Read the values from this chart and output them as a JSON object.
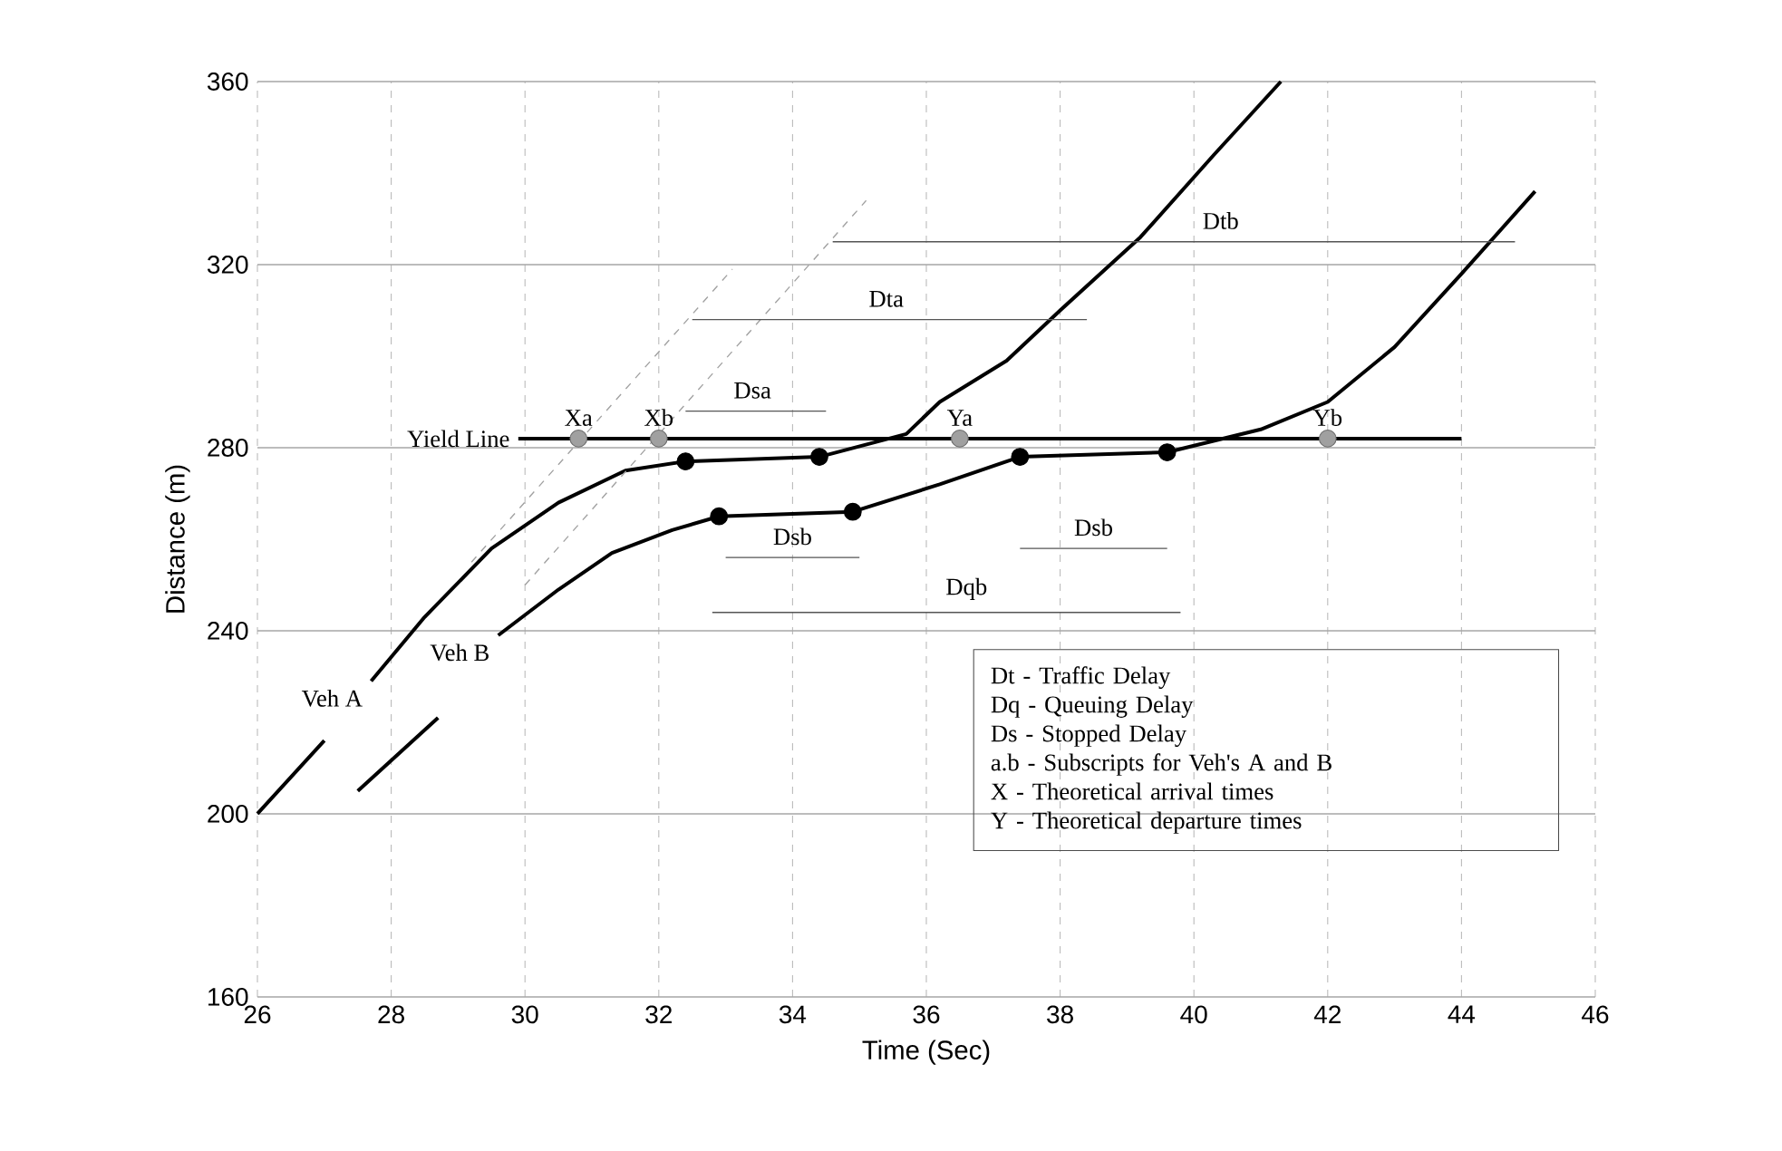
{
  "chart_data": {
    "type": "line",
    "xlabel": "Time (Sec)",
    "ylabel": "Distance (m)",
    "xlim": [
      26,
      46
    ],
    "ylim": [
      160,
      360
    ],
    "xticks": [
      26,
      28,
      30,
      32,
      34,
      36,
      38,
      40,
      42,
      44,
      46
    ],
    "yticks": [
      160,
      200,
      240,
      280,
      320,
      360
    ],
    "grid": true,
    "series": [
      {
        "name": "Veh A",
        "color": "#000000",
        "x": [
          26,
          27,
          27.35,
          27.7,
          28.5,
          29.5,
          30.5,
          31.5,
          32.4,
          34.4,
          35.7,
          36.2,
          37.2,
          38,
          39.2,
          40.3,
          41.3
        ],
        "values": [
          200,
          216,
          null,
          229,
          243,
          258,
          268,
          275,
          277,
          278,
          283,
          290,
          299,
          310,
          326,
          344,
          360
        ]
      },
      {
        "name": "Veh B",
        "color": "#000000",
        "x": [
          27.5,
          28.7,
          29.15,
          29.6,
          30.5,
          31.3,
          32.2,
          32.9,
          34.9,
          36.2,
          37.4,
          39.6,
          41,
          42,
          43,
          44,
          45.1
        ],
        "values": [
          205,
          221,
          null,
          239,
          249,
          257,
          262,
          265,
          266,
          272,
          278,
          279,
          284,
          290,
          302,
          318,
          336
        ]
      },
      {
        "name": "Yield Line",
        "color": "#000000",
        "x": [
          29.9,
          44
        ],
        "values": [
          282,
          282
        ]
      },
      {
        "color": "#a0a0a0",
        "line_style": "dashed",
        "x": [
          29.2,
          33.1
        ],
        "values": [
          255,
          319
        ]
      },
      {
        "color": "#a0a0a0",
        "line_style": "dashed",
        "x": [
          30,
          35.1
        ],
        "values": [
          250,
          334
        ]
      },
      {
        "type": "scatter",
        "color": "#a0a0a0",
        "x": [
          30.8,
          32,
          36.5,
          42
        ],
        "values": [
          282,
          282,
          282,
          282
        ]
      },
      {
        "type": "scatter",
        "color": "#000000",
        "x": [
          32.4,
          34.4,
          32.9,
          34.9,
          37.4,
          39.6
        ],
        "values": [
          277,
          278,
          265,
          266,
          278,
          279
        ]
      },
      {
        "color": "#555555",
        "x": [
          32.5,
          38.4
        ],
        "values": [
          308,
          308
        ]
      },
      {
        "color": "#555555",
        "x": [
          34.6,
          44.8
        ],
        "values": [
          325,
          325
        ]
      },
      {
        "color": "#555555",
        "x": [
          32.4,
          34.5
        ],
        "values": [
          288,
          288
        ]
      },
      {
        "color": "#555555",
        "x": [
          33,
          35
        ],
        "values": [
          256,
          256
        ]
      },
      {
        "color": "#555555",
        "x": [
          32.8,
          39.8
        ],
        "values": [
          244,
          244
        ]
      },
      {
        "color": "#555555",
        "x": [
          37.4,
          39.6
        ],
        "values": [
          258,
          258
        ]
      }
    ],
    "annotations": [
      {
        "text": "Xa",
        "x": 30.8,
        "y": 282
      },
      {
        "text": "Xb",
        "x": 32,
        "y": 282
      },
      {
        "text": "Ya",
        "x": 36.5,
        "y": 282
      },
      {
        "text": "Yb",
        "x": 42,
        "y": 282
      },
      {
        "text": "Dta",
        "x": 35.4,
        "y": 308
      },
      {
        "text": "Dtb",
        "x": 40.4,
        "y": 325
      },
      {
        "text": "Dsa",
        "x": 33.4,
        "y": 288
      },
      {
        "text": "Dsb",
        "x": 34,
        "y": 256
      },
      {
        "text": "Dqb",
        "x": 36.6,
        "y": 244
      },
      {
        "text": "Dsb",
        "x": 38.5,
        "y": 258
      },
      "Dt - Traffic Delay",
      "Dq - Queuing Delay",
      "Ds - Stopped Delay",
      "a.b - Subscripts for Veh's A and B",
      "X - Theoretical arrival times",
      "Y - Theoretical departure times"
    ]
  }
}
